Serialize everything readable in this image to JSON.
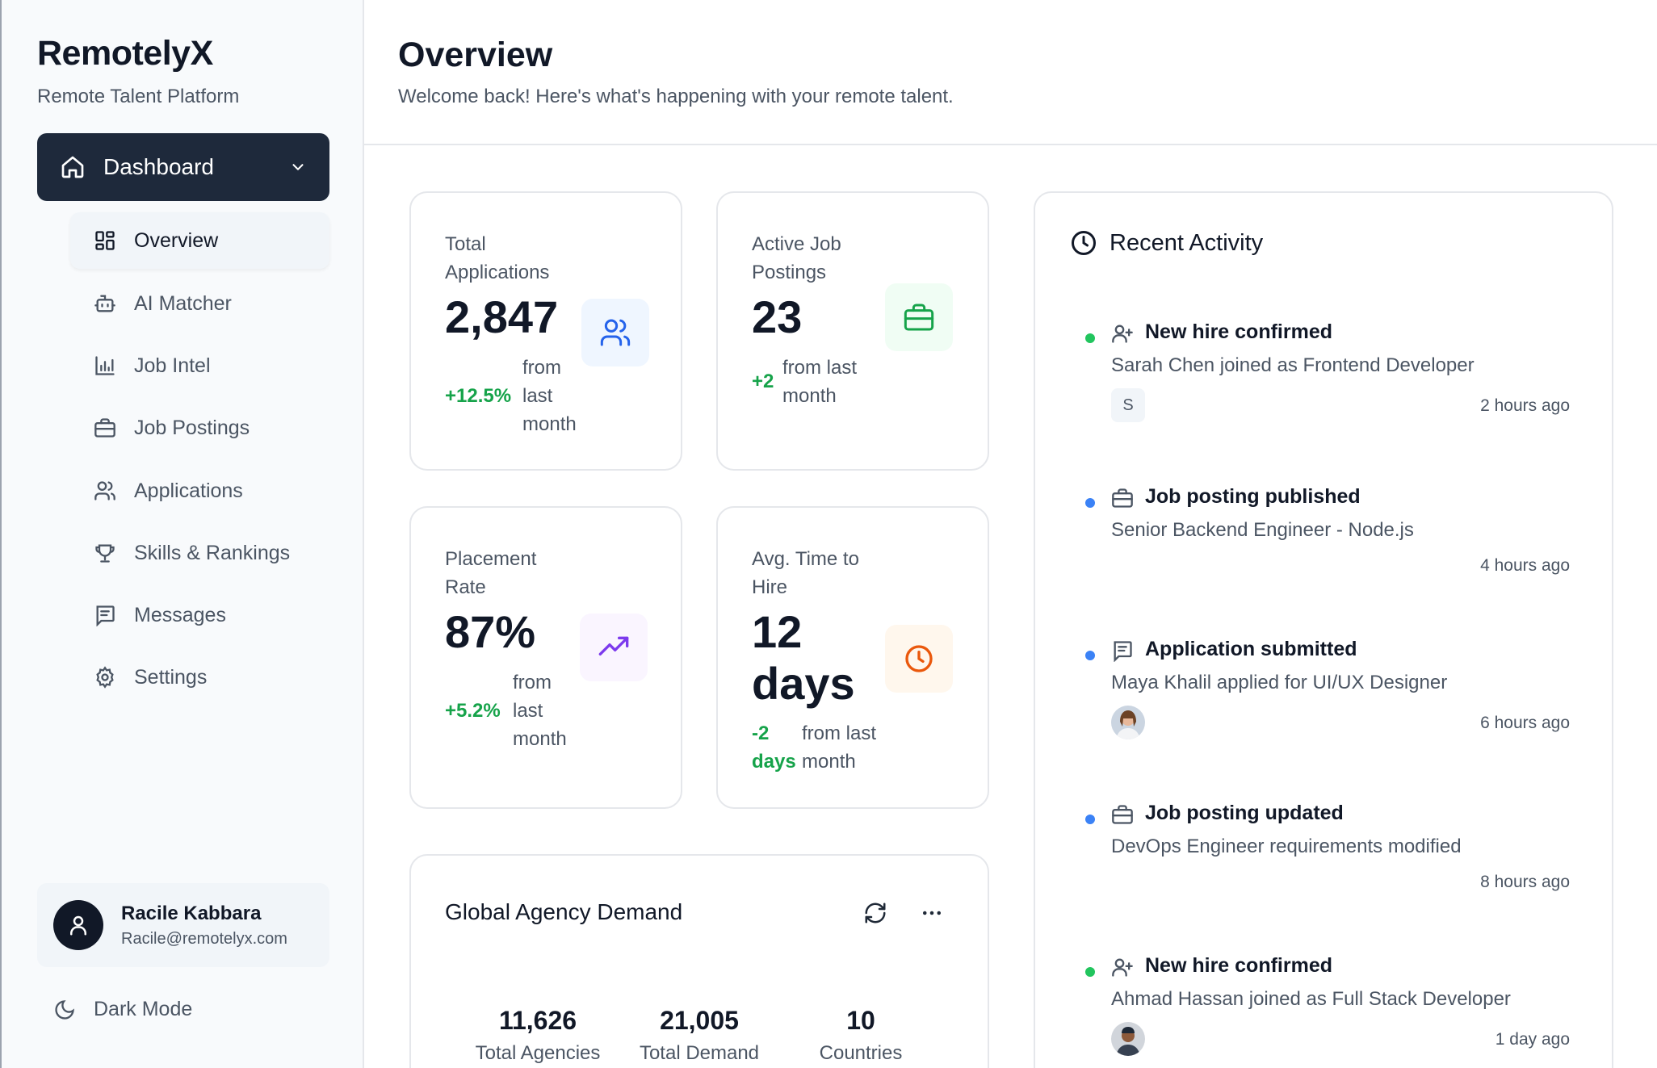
{
  "sidebar": {
    "brand": "RemotelyX",
    "tagline": "Remote Talent Platform",
    "dashboard_label": "Dashboard",
    "items": [
      {
        "label": "Overview",
        "icon": "grid-icon",
        "active": true
      },
      {
        "label": "AI Matcher",
        "icon": "bot-icon"
      },
      {
        "label": "Job Intel",
        "icon": "bar-chart-icon"
      },
      {
        "label": "Job Postings",
        "icon": "briefcase-icon"
      },
      {
        "label": "Applications",
        "icon": "users-icon"
      },
      {
        "label": "Skills & Rankings",
        "icon": "trophy-icon"
      },
      {
        "label": "Messages",
        "icon": "message-icon"
      },
      {
        "label": "Settings",
        "icon": "gear-icon"
      }
    ],
    "user": {
      "name": "Racile Kabbara",
      "email": "Racile@remotelyx.com"
    },
    "dark_mode_label": "Dark Mode"
  },
  "header": {
    "title": "Overview",
    "subtitle": "Welcome back! Here's what's happening with your remote talent."
  },
  "stats": [
    {
      "label_line1": "Total",
      "label_line2": "Applications",
      "value": "2,847",
      "change": "+12.5%",
      "from1": "from",
      "from2": "last",
      "from3": "month",
      "icon": "users-icon",
      "icon_color": "#2563eb",
      "icon_bg": "#eff6ff"
    },
    {
      "label_line1": "Active Job",
      "label_line2": "Postings",
      "value": "23",
      "change": "+2",
      "from1": "from last",
      "from2": "month",
      "icon": "briefcase-icon",
      "icon_color": "#16a34a",
      "icon_bg": "#f0fdf4"
    },
    {
      "label_line1": "Placement",
      "label_line2": "Rate",
      "value": "87%",
      "change": "+5.2%",
      "from1": "from",
      "from2": "last",
      "from3": "month",
      "icon": "trending-up-icon",
      "icon_color": "#7c3aed",
      "icon_bg": "#faf5ff"
    },
    {
      "label_line1": "Avg. Time to",
      "label_line2": "Hire",
      "value_line1": "12",
      "value_line2": "days",
      "change_line1": "-2",
      "change_line2": "days",
      "from1": "from last",
      "from2": "month",
      "icon": "clock-icon",
      "icon_color": "#ea580c",
      "icon_bg": "#fff7ed"
    }
  ],
  "global_demand": {
    "title": "Global Agency Demand",
    "stats": [
      {
        "value": "11,626",
        "label": "Total Agencies"
      },
      {
        "value": "21,005",
        "label": "Total Demand"
      },
      {
        "value": "10",
        "label": "Countries"
      }
    ]
  },
  "recent_activity": {
    "title": "Recent Activity",
    "items": [
      {
        "title": "New hire confirmed",
        "desc": "Sarah Chen joined as Frontend Developer",
        "time": "2 hours ago",
        "badge": "S",
        "dot": "#22c55e",
        "icon": "user-plus-icon"
      },
      {
        "title": "Job posting published",
        "desc": "Senior Backend Engineer - Node.js",
        "time": "4 hours ago",
        "dot": "#3b82f6",
        "icon": "briefcase-icon"
      },
      {
        "title": "Application submitted",
        "desc": "Maya Khalil applied for UI/UX Designer",
        "time": "6 hours ago",
        "dot": "#3b82f6",
        "icon": "message-icon"
      },
      {
        "title": "Job posting updated",
        "desc": "DevOps Engineer requirements modified",
        "time": "8 hours ago",
        "dot": "#3b82f6",
        "icon": "briefcase-icon"
      },
      {
        "title": "New hire confirmed",
        "desc": "Ahmad Hassan joined as Full Stack Developer",
        "time": "1 day ago",
        "dot": "#22c55e",
        "icon": "user-plus-icon"
      }
    ]
  }
}
